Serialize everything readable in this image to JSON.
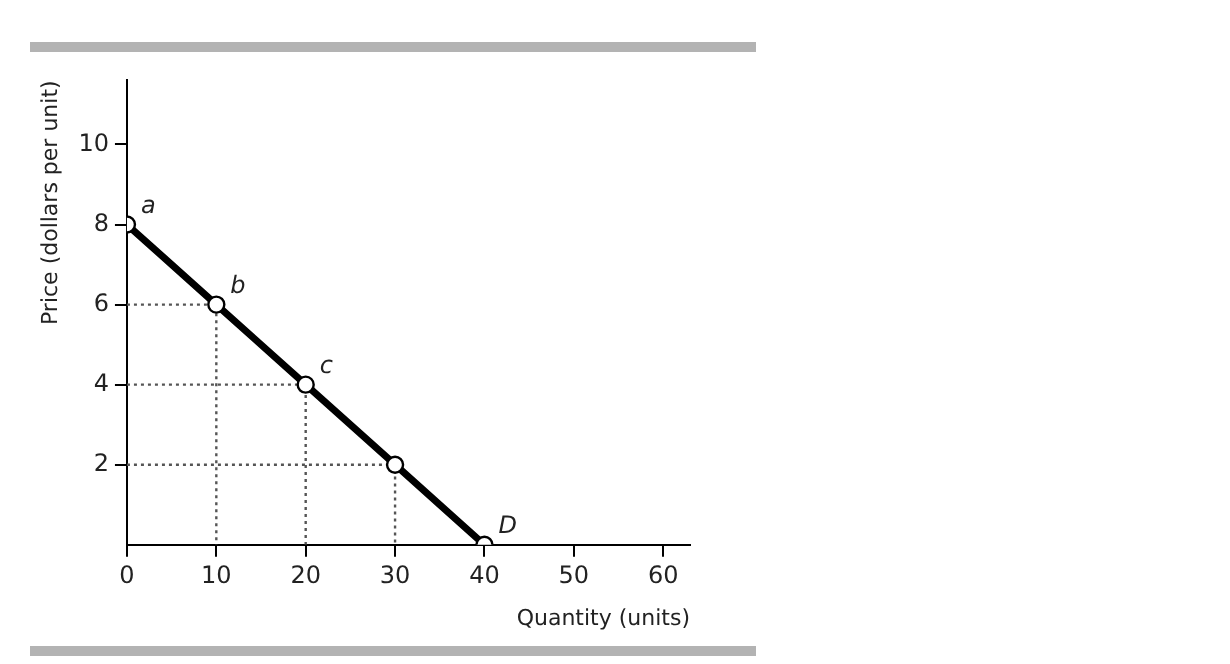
{
  "chart_data": {
    "type": "line",
    "xlabel": "Quantity (units)",
    "ylabel": "Price (dollars per unit)",
    "xlim": [
      0,
      63
    ],
    "ylim": [
      0,
      11.6
    ],
    "xticks": [
      0,
      10,
      20,
      30,
      40,
      50,
      60
    ],
    "yticks": [
      2,
      4,
      6,
      8,
      10
    ],
    "grid": false,
    "legend": false,
    "marker": "circle",
    "series": [
      {
        "color": "#000000",
        "x": [
          0,
          10,
          20,
          30,
          40
        ],
        "values": [
          8,
          6,
          4,
          2,
          0
        ]
      },
      {
        "color": "#555555",
        "x": [
          0,
          10,
          10
        ],
        "values": [
          6,
          6,
          0
        ],
        "marker": "none",
        "line_style": "dotted"
      },
      {
        "color": "#555555",
        "x": [
          0,
          20,
          20
        ],
        "values": [
          4,
          4,
          0
        ],
        "marker": "none",
        "line_style": "dotted"
      },
      {
        "color": "#555555",
        "x": [
          0,
          30,
          30
        ],
        "values": [
          2,
          2,
          0
        ],
        "marker": "none",
        "line_style": "dotted"
      }
    ],
    "annotations": [
      {
        "text": "a",
        "x": 0,
        "y": 8
      },
      {
        "text": "b",
        "x": 10,
        "y": 6
      },
      {
        "text": "c",
        "x": 20,
        "y": 4
      },
      {
        "text": "D",
        "x": 40,
        "y": 0
      }
    ]
  }
}
